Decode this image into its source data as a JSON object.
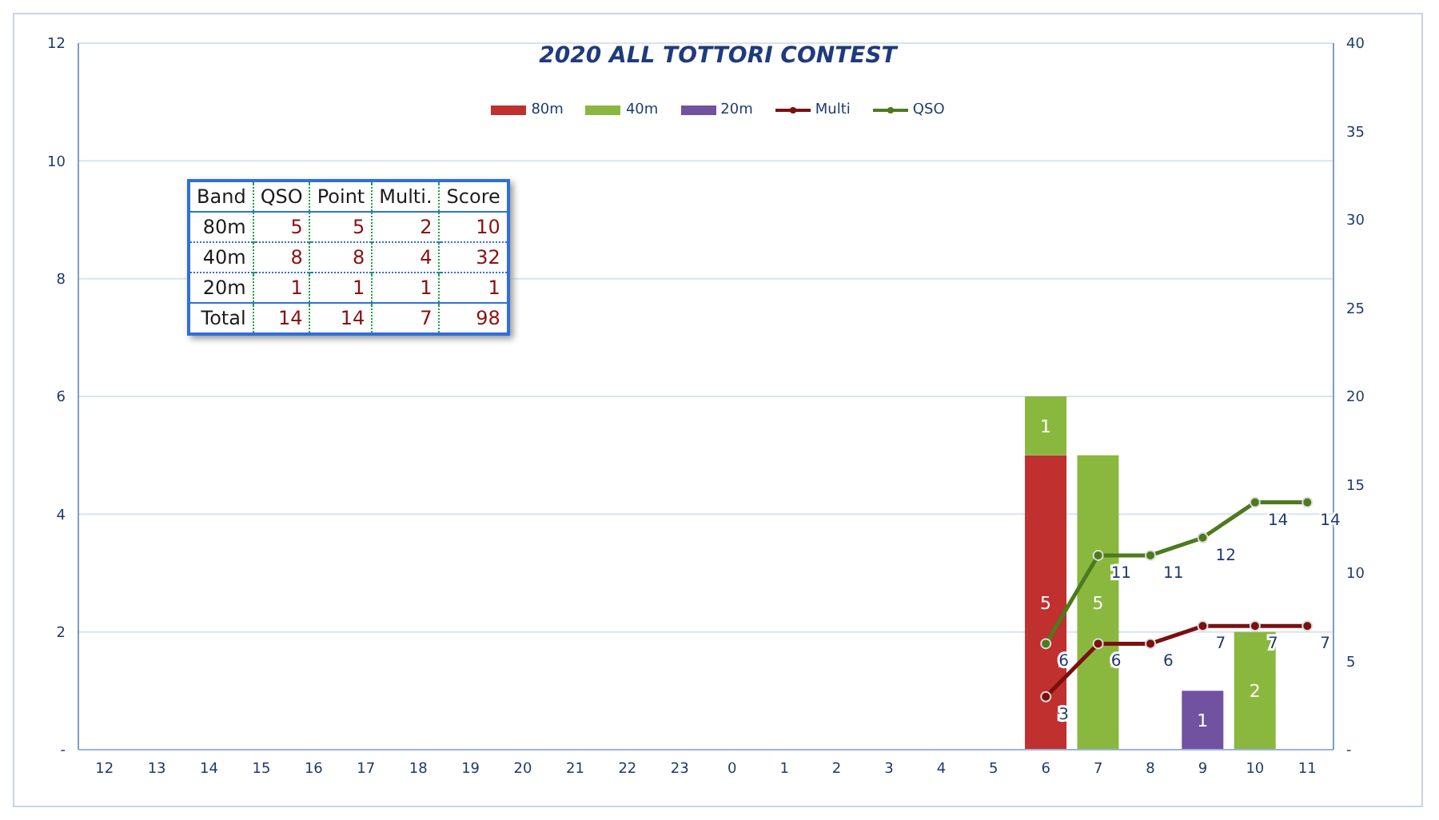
{
  "chart_data": {
    "type": "bar",
    "title": "2020 ALL TOTTORI CONTEST",
    "stacked": true,
    "grid": "y",
    "legend": "top",
    "marker": "circle",
    "line_style": "solid",
    "categories": [
      "12",
      "13",
      "14",
      "15",
      "16",
      "17",
      "18",
      "19",
      "20",
      "21",
      "22",
      "23",
      "0",
      "1",
      "2",
      "3",
      "4",
      "5",
      "6",
      "7",
      "8",
      "9",
      "10",
      "11"
    ],
    "series": [
      {
        "name": "80m",
        "color": "#c0302e",
        "values": [
          0,
          0,
          0,
          0,
          0,
          0,
          0,
          0,
          0,
          0,
          0,
          0,
          0,
          0,
          0,
          0,
          0,
          0,
          5,
          0,
          0,
          0,
          0,
          0
        ],
        "value_labels": [
          null,
          null,
          null,
          null,
          null,
          null,
          null,
          null,
          null,
          null,
          null,
          null,
          null,
          null,
          null,
          null,
          null,
          null,
          "5",
          null,
          null,
          null,
          null,
          null
        ]
      },
      {
        "name": "40m",
        "color": "#8ab83e",
        "values": [
          0,
          0,
          0,
          0,
          0,
          0,
          0,
          0,
          0,
          0,
          0,
          0,
          0,
          0,
          0,
          0,
          0,
          0,
          1,
          5,
          0,
          0,
          2,
          0
        ],
        "value_labels": [
          null,
          null,
          null,
          null,
          null,
          null,
          null,
          null,
          null,
          null,
          null,
          null,
          null,
          null,
          null,
          null,
          null,
          null,
          "1",
          "5",
          null,
          null,
          "2",
          null
        ]
      },
      {
        "name": "20m",
        "color": "#7052a0",
        "values": [
          0,
          0,
          0,
          0,
          0,
          0,
          0,
          0,
          0,
          0,
          0,
          0,
          0,
          0,
          0,
          0,
          0,
          0,
          0,
          0,
          0,
          1,
          0,
          0
        ],
        "value_labels": [
          null,
          null,
          null,
          null,
          null,
          null,
          null,
          null,
          null,
          null,
          null,
          null,
          null,
          null,
          null,
          null,
          null,
          null,
          null,
          null,
          null,
          "1",
          null,
          null
        ]
      },
      {
        "name": "Multi",
        "type": "line",
        "axis": "y2",
        "color": "#7a1010",
        "values": [
          null,
          null,
          null,
          null,
          null,
          null,
          null,
          null,
          null,
          null,
          null,
          null,
          null,
          null,
          null,
          null,
          null,
          null,
          3,
          6,
          6,
          7,
          7,
          7
        ],
        "value_labels": [
          null,
          null,
          null,
          null,
          null,
          null,
          null,
          null,
          null,
          null,
          null,
          null,
          null,
          null,
          null,
          null,
          null,
          null,
          "3",
          "6",
          "6",
          "7",
          "7",
          "7"
        ]
      },
      {
        "name": "QSO",
        "type": "line",
        "axis": "y2",
        "color": "#4e7a1e",
        "values": [
          null,
          null,
          null,
          null,
          null,
          null,
          null,
          null,
          null,
          null,
          null,
          null,
          null,
          null,
          null,
          null,
          null,
          null,
          6,
          11,
          11,
          12,
          14,
          14
        ],
        "value_labels": [
          null,
          null,
          null,
          null,
          null,
          null,
          null,
          null,
          null,
          null,
          null,
          null,
          null,
          null,
          null,
          null,
          null,
          null,
          "6",
          "11",
          "11",
          "12",
          "14",
          "14"
        ]
      }
    ],
    "ylim": [
      0,
      12
    ],
    "yticks": [
      {
        "value": 0,
        "label": "-"
      },
      2,
      4,
      6,
      8,
      10,
      12
    ],
    "y2lim": [
      0,
      40
    ],
    "y2ticks": [
      {
        "value": 0,
        "label": "-"
      },
      5,
      10,
      15,
      20,
      25,
      30,
      35,
      40
    ],
    "annotations": [
      "Band",
      "QSO",
      "Point",
      "Multi.",
      "Score",
      "80m",
      "5",
      "5",
      "2",
      "10",
      "40m",
      "8",
      "8",
      "4",
      "32",
      "20m",
      "1",
      "1",
      "1",
      "1",
      "Total",
      "14",
      "14",
      "7",
      "98"
    ]
  }
}
